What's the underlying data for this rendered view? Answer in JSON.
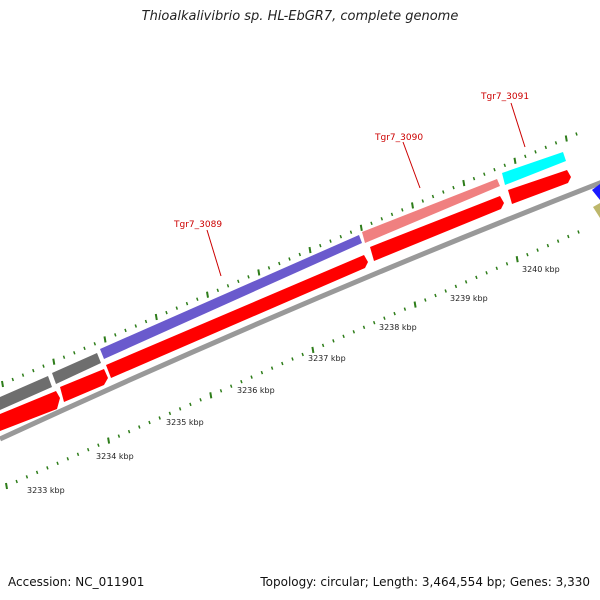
{
  "title": "Thioalkalivibrio sp. HL-EbGR7, complete genome",
  "footer": {
    "accession": "Accession: NC_011901",
    "summary": "Topology: circular; Length: 3,464,554 bp; Genes: 3,330"
  },
  "scale_labels": [
    "3233 kbp",
    "3234 kbp",
    "3235 kbp",
    "3236 kbp",
    "3237 kbp",
    "3238 kbp",
    "3239 kbp",
    "3240 kbp"
  ],
  "gene_labels": {
    "tgr7_3089": "Tgr7_3089",
    "tgr7_3090": "Tgr7_3090",
    "tgr7_3091": "Tgr7_3091"
  },
  "colors": {
    "backbone": "#8a8a8a",
    "cds_red": "#ff0000",
    "gene_gray": "#6e6e6e",
    "gene_purple": "#6a5acd",
    "gene_pink": "#f08080",
    "gene_cyan": "#00ffff",
    "tick_green": "#2e7d1a",
    "label_red": "#cc0000"
  }
}
